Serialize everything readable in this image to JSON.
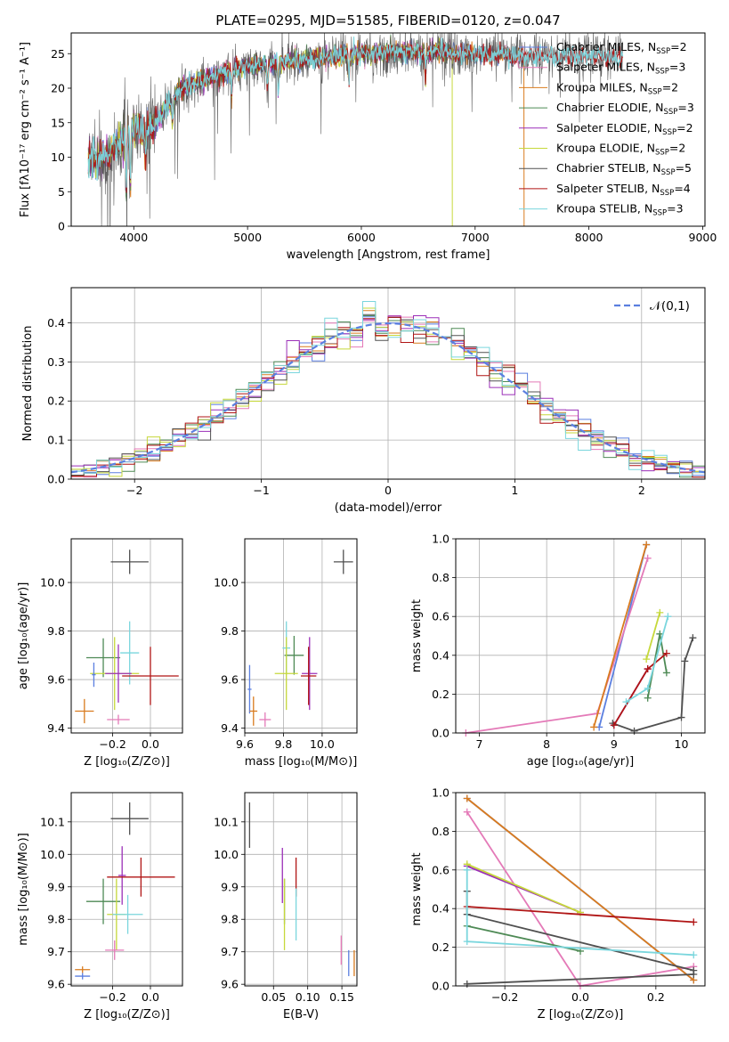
{
  "figure_title": "PLATE=0295, MJD=51585, FIBERID=0120, z=0.047",
  "palette": {
    "Chabrier MILES": "#5b7fe0",
    "Salpeter MILES": "#e47ab8",
    "Kroupa MILES": "#d97b1e",
    "Chabrier ELODIE": "#4e8a55",
    "Salpeter ELODIE": "#9b2fb8",
    "Kroupa ELODIE": "#c6d83a",
    "Chabrier STELIB": "#505050",
    "Salpeter STELIB": "#b01515",
    "Kroupa STELIB": "#7ad6dd"
  },
  "chart_data": [
    {
      "id": "spectrum",
      "type": "line",
      "title": "PLATE=0295, MJD=51585, FIBERID=0120, z=0.047",
      "xlabel": "wavelength [Angstrom, rest frame]",
      "ylabel": "Flux [fλ10⁻¹⁷ erg cm⁻² s⁻¹ A⁻¹]",
      "xlim": [
        3450,
        9020
      ],
      "ylim": [
        0,
        28
      ],
      "xticks": [
        4000,
        5000,
        6000,
        7000,
        8000,
        9000
      ],
      "yticks": [
        0,
        5,
        10,
        15,
        20,
        25
      ],
      "grid": false,
      "legend_position": "right",
      "continuum": {
        "x": [
          3600,
          3700,
          3800,
          3900,
          4000,
          4100,
          4200,
          4300,
          4400,
          4500,
          4600,
          4700,
          4800,
          4900,
          5000,
          5200,
          5400,
          5600,
          5800,
          6000,
          6200,
          6400,
          6600,
          6800,
          7000,
          7200,
          7400
        ],
        "y": [
          9.5,
          9.5,
          10.8,
          12.6,
          14.3,
          14.2,
          15.2,
          17.5,
          19.7,
          20.5,
          21.2,
          21.5,
          22.2,
          22.9,
          23.2,
          23.7,
          24.0,
          24.2,
          24.7,
          25.1,
          25.2,
          25.2,
          25.3,
          25.1,
          25.0,
          24.8,
          24.6
        ]
      },
      "series": [
        {
          "name": "Chabrier MILES",
          "nssp": "2",
          "x_start": 3600,
          "x_end": 7430,
          "dropout_at": null
        },
        {
          "name": "Salpeter MILES",
          "nssp": "3",
          "x_start": 3600,
          "x_end": 7430,
          "dropout_at": null
        },
        {
          "name": "Kroupa MILES",
          "nssp": "2",
          "x_start": 3600,
          "x_end": 7430,
          "dropout_at": 7430
        },
        {
          "name": "Chabrier ELODIE",
          "nssp": "3",
          "x_start": 3600,
          "x_end": 6800,
          "dropout_at": null
        },
        {
          "name": "Salpeter ELODIE",
          "nssp": "2",
          "x_start": 3600,
          "x_end": 6800,
          "dropout_at": null
        },
        {
          "name": "Kroupa ELODIE",
          "nssp": "2",
          "x_start": 3600,
          "x_end": 6800,
          "dropout_at": 6800
        },
        {
          "name": "Chabrier STELIB",
          "nssp": "5",
          "x_start": 3600,
          "x_end": 8300,
          "dropout_at": null
        },
        {
          "name": "Salpeter STELIB",
          "nssp": "4",
          "x_start": 3600,
          "x_end": 8300,
          "dropout_at": null
        },
        {
          "name": "Kroupa STELIB",
          "nssp": "3",
          "x_start": 3600,
          "x_end": 8300,
          "dropout_at": null
        }
      ]
    },
    {
      "id": "residuals",
      "type": "line",
      "xlabel": "(data-model)/error",
      "ylabel": "Normed distribution",
      "xlim": [
        -2.5,
        2.5
      ],
      "ylim": [
        0,
        0.49
      ],
      "xticks": [
        -2,
        -1,
        0,
        1,
        2
      ],
      "yticks": [
        0.0,
        0.1,
        0.2,
        0.3,
        0.4
      ],
      "grid": true,
      "legend_position": "top-right",
      "reference": {
        "name": "𝒩(0,1)",
        "mu": 0,
        "sigma": 1
      },
      "histogram": {
        "bin_start": -2.5,
        "bin_width": 0.1,
        "bins": 50
      }
    },
    {
      "id": "age_vs_Z",
      "type": "scatter",
      "xlabel": "Z [log₁₀(Z/Z⊙)]",
      "ylabel": "age  [log₁₀(age/yr)]",
      "xlim": [
        -0.42,
        0.17
      ],
      "ylim": [
        9.38,
        10.18
      ],
      "xticks": [
        -0.2,
        0.0
      ],
      "yticks": [
        9.4,
        9.6,
        9.8,
        10.0
      ],
      "grid": true,
      "points": [
        {
          "name": "Chabrier STELIB",
          "x": -0.11,
          "xerr": 0.1,
          "y": 10.085,
          "yerr": 0.05
        },
        {
          "name": "Kroupa STELIB",
          "x": -0.11,
          "xerr": 0.05,
          "y": 9.71,
          "yerr": 0.13
        },
        {
          "name": "Chabrier ELODIE",
          "x": -0.25,
          "xerr": 0.09,
          "y": 9.69,
          "yerr": 0.08
        },
        {
          "name": "Kroupa ELODIE",
          "x": -0.19,
          "xerr": 0.13,
          "y": 9.625,
          "yerr": 0.15
        },
        {
          "name": "Salpeter ELODIE",
          "x": -0.17,
          "xerr": 0.07,
          "y": 9.625,
          "yerr": 0.12
        },
        {
          "name": "Salpeter STELIB",
          "x": 0.0,
          "xerr": 0.15,
          "y": 9.615,
          "yerr": 0.12
        },
        {
          "name": "Chabrier MILES",
          "x": -0.3,
          "xerr": 0.01,
          "y": 9.62,
          "yerr": 0.05
        },
        {
          "name": "Kroupa MILES",
          "x": -0.35,
          "xerr": 0.05,
          "y": 9.47,
          "yerr": 0.05
        },
        {
          "name": "Salpeter MILES",
          "x": -0.17,
          "xerr": 0.06,
          "y": 9.435,
          "yerr": 0.02
        }
      ]
    },
    {
      "id": "age_vs_mass",
      "type": "scatter",
      "xlabel": "mass [log₁₀(M/M⊙)]",
      "ylabel": "",
      "xlim": [
        9.6,
        10.18
      ],
      "ylim": [
        9.38,
        10.18
      ],
      "xticks": [
        9.6,
        9.8,
        10.0
      ],
      "yticks": [
        9.4,
        9.6,
        9.8,
        10.0
      ],
      "grid": true,
      "points": [
        {
          "name": "Chabrier STELIB",
          "x": 10.11,
          "xerr": 0.05,
          "y": 10.085,
          "yerr": 0.05
        },
        {
          "name": "Kroupa STELIB",
          "x": 9.815,
          "xerr": 0.02,
          "y": 9.73,
          "yerr": 0.11
        },
        {
          "name": "Chabrier ELODIE",
          "x": 9.855,
          "xerr": 0.05,
          "y": 9.7,
          "yerr": 0.08
        },
        {
          "name": "Kroupa ELODIE",
          "x": 9.815,
          "xerr": 0.06,
          "y": 9.625,
          "yerr": 0.15
        },
        {
          "name": "Salpeter ELODIE",
          "x": 9.935,
          "xerr": 0.04,
          "y": 9.625,
          "yerr": 0.15
        },
        {
          "name": "Salpeter STELIB",
          "x": 9.93,
          "xerr": 0.04,
          "y": 9.615,
          "yerr": 0.12
        },
        {
          "name": "Chabrier MILES",
          "x": 9.625,
          "xerr": 0.01,
          "y": 9.56,
          "yerr": 0.1
        },
        {
          "name": "Kroupa MILES",
          "x": 9.645,
          "xerr": 0.02,
          "y": 9.47,
          "yerr": 0.06
        },
        {
          "name": "Salpeter MILES",
          "x": 9.705,
          "xerr": 0.03,
          "y": 9.435,
          "yerr": 0.03
        }
      ]
    },
    {
      "id": "weight_vs_age",
      "type": "line",
      "xlabel": "age  [log₁₀(age/yr)]",
      "ylabel": "mass weight",
      "xlim": [
        6.65,
        10.35
      ],
      "ylim": [
        0,
        1.0
      ],
      "xticks": [
        7,
        8,
        9,
        10
      ],
      "yticks": [
        0.0,
        0.2,
        0.4,
        0.6,
        0.8,
        1.0
      ],
      "grid": true,
      "series": [
        {
          "name": "Chabrier MILES",
          "points": [
            [
              8.78,
              0.03
            ],
            [
              9.48,
              0.97
            ]
          ]
        },
        {
          "name": "Salpeter MILES",
          "points": [
            [
              6.8,
              0.0
            ],
            [
              8.75,
              0.1
            ],
            [
              9.5,
              0.9
            ]
          ]
        },
        {
          "name": "Kroupa MILES",
          "points": [
            [
              8.7,
              0.03
            ],
            [
              9.48,
              0.97
            ]
          ]
        },
        {
          "name": "Chabrier ELODIE",
          "points": [
            [
              9.5,
              0.18
            ],
            [
              9.68,
              0.51
            ],
            [
              9.78,
              0.31
            ]
          ]
        },
        {
          "name": "Salpeter ELODIE",
          "points": [
            [
              9.0,
              0.04
            ],
            [
              9.5,
              0.33
            ]
          ]
        },
        {
          "name": "Kroupa ELODIE",
          "points": [
            [
              9.48,
              0.38
            ],
            [
              9.68,
              0.62
            ]
          ]
        },
        {
          "name": "Chabrier STELIB",
          "points": [
            [
              8.98,
              0.05
            ],
            [
              9.3,
              0.01
            ],
            [
              10.0,
              0.08
            ],
            [
              10.05,
              0.37
            ],
            [
              10.17,
              0.49
            ]
          ]
        },
        {
          "name": "Salpeter STELIB",
          "points": [
            [
              9.0,
              0.04
            ],
            [
              9.5,
              0.33
            ],
            [
              9.78,
              0.41
            ]
          ]
        },
        {
          "name": "Kroupa STELIB",
          "points": [
            [
              9.18,
              0.16
            ],
            [
              9.5,
              0.23
            ],
            [
              9.8,
              0.6
            ]
          ]
        }
      ]
    },
    {
      "id": "mass_vs_Z",
      "type": "scatter",
      "xlabel": "Z [log₁₀(Z/Z⊙)]",
      "ylabel": "mass [log₁₀(M/M⊙)]",
      "xlim": [
        -0.42,
        0.17
      ],
      "ylim": [
        9.595,
        10.19
      ],
      "xticks": [
        -0.2,
        0.0
      ],
      "yticks": [
        9.6,
        9.7,
        9.8,
        9.9,
        10.0,
        10.1
      ],
      "grid": true,
      "points": [
        {
          "name": "Chabrier STELIB",
          "x": -0.11,
          "xerr": 0.1,
          "y": 10.11,
          "yerr": 0.05
        },
        {
          "name": "Salpeter ELODIE",
          "x": -0.15,
          "xerr": 0.02,
          "y": 9.935,
          "yerr": 0.09
        },
        {
          "name": "Salpeter STELIB",
          "x": -0.05,
          "xerr": 0.18,
          "y": 9.93,
          "yerr": 0.06
        },
        {
          "name": "Chabrier ELODIE",
          "x": -0.25,
          "xerr": 0.09,
          "y": 9.855,
          "yerr": 0.07
        },
        {
          "name": "Kroupa ELODIE",
          "x": -0.18,
          "xerr": 0.05,
          "y": 9.815,
          "yerr": 0.11
        },
        {
          "name": "Kroupa STELIB",
          "x": -0.12,
          "xerr": 0.08,
          "y": 9.815,
          "yerr": 0.06
        },
        {
          "name": "Salpeter MILES",
          "x": -0.19,
          "xerr": 0.05,
          "y": 9.705,
          "yerr": 0.03
        },
        {
          "name": "Kroupa MILES",
          "x": -0.36,
          "xerr": 0.04,
          "y": 9.645,
          "yerr": 0.01
        },
        {
          "name": "Chabrier MILES",
          "x": -0.36,
          "xerr": 0.04,
          "y": 9.625,
          "yerr": 0.01
        }
      ]
    },
    {
      "id": "mass_vs_ebv",
      "type": "scatter",
      "xlabel": "E(B-V)",
      "ylabel": "",
      "xlim": [
        0.008,
        0.172
      ],
      "ylim": [
        9.595,
        10.19
      ],
      "xticks": [
        0.05,
        0.1,
        0.15
      ],
      "yticks": [
        9.6,
        9.7,
        9.8,
        9.9,
        10.0,
        10.1
      ],
      "grid": true,
      "points": [
        {
          "name": "Chabrier STELIB",
          "x": 0.015,
          "xerr": 0.0,
          "y": 10.09,
          "yerr": 0.07
        },
        {
          "name": "Salpeter ELODIE",
          "x": 0.063,
          "xerr": 0.0,
          "y": 9.935,
          "yerr": 0.085
        },
        {
          "name": "Salpeter STELIB",
          "x": 0.083,
          "xerr": 0.0,
          "y": 9.93,
          "yerr": 0.06
        },
        {
          "name": "Chabrier ELODIE",
          "x": 0.066,
          "xerr": 0.0,
          "y": 9.855,
          "yerr": 0.07
        },
        {
          "name": "Kroupa ELODIE",
          "x": 0.066,
          "xerr": 0.0,
          "y": 9.815,
          "yerr": 0.11
        },
        {
          "name": "Kroupa STELIB",
          "x": 0.083,
          "xerr": 0.0,
          "y": 9.815,
          "yerr": 0.08
        },
        {
          "name": "Salpeter MILES",
          "x": 0.149,
          "xerr": 0.0,
          "y": 9.705,
          "yerr": 0.045
        },
        {
          "name": "Kroupa MILES",
          "x": 0.168,
          "xerr": 0.0,
          "y": 9.665,
          "yerr": 0.04
        },
        {
          "name": "Chabrier MILES",
          "x": 0.16,
          "xerr": 0.0,
          "y": 9.665,
          "yerr": 0.04
        }
      ]
    },
    {
      "id": "weight_vs_Z",
      "type": "line",
      "xlabel": "Z [log₁₀(Z/Z⊙)]",
      "ylabel": "mass weight",
      "xlim": [
        -0.33,
        0.33
      ],
      "ylim": [
        0,
        1.0
      ],
      "xticks": [
        -0.2,
        0.0,
        0.2
      ],
      "yticks": [
        0.0,
        0.2,
        0.4,
        0.6,
        0.8,
        1.0
      ],
      "grid": true,
      "series": [
        {
          "name": "Chabrier MILES",
          "points": [
            [
              -0.3,
              0.97
            ],
            [
              0.3,
              0.03
            ]
          ]
        },
        {
          "name": "Salpeter MILES",
          "points": [
            [
              -0.3,
              0.9
            ],
            [
              0.0,
              0.0
            ],
            [
              0.3,
              0.1
            ]
          ]
        },
        {
          "name": "Kroupa MILES",
          "points": [
            [
              -0.3,
              0.97
            ],
            [
              0.3,
              0.03
            ]
          ]
        },
        {
          "name": "Chabrier ELODIE",
          "points": [
            [
              -0.3,
              0.31
            ],
            [
              0.0,
              0.18
            ]
          ]
        },
        {
          "name": "Salpeter ELODIE",
          "points": [
            [
              -0.3,
              0.62
            ],
            [
              0.0,
              0.38
            ]
          ]
        },
        {
          "name": "Kroupa ELODIE",
          "points": [
            [
              -0.3,
              0.63
            ],
            [
              0.0,
              0.38
            ]
          ]
        },
        {
          "name": "Chabrier STELIB",
          "points": [
            [
              -0.3,
              0.01
            ],
            [
              0.3,
              0.06
            ],
            [
              0.3,
              0.08
            ],
            [
              -0.3,
              0.37
            ],
            [
              -0.3,
              0.49
            ]
          ]
        },
        {
          "name": "Salpeter STELIB",
          "points": [
            [
              -0.3,
              0.41
            ],
            [
              0.3,
              0.33
            ]
          ]
        },
        {
          "name": "Kroupa STELIB",
          "points": [
            [
              -0.3,
              0.6
            ],
            [
              -0.3,
              0.23
            ],
            [
              0.3,
              0.16
            ]
          ]
        }
      ]
    }
  ]
}
